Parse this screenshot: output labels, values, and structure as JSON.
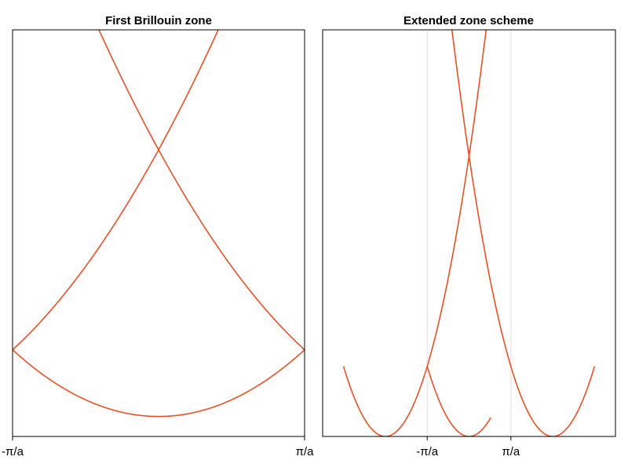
{
  "accent_color": "#e2522a",
  "chart_data": [
    {
      "type": "line",
      "title": "First Brillouin zone",
      "xlabel": "",
      "ylabel": "",
      "x_unit": "pi/a",
      "xlim": [
        -1,
        1
      ],
      "ylim": [
        -0.3,
        5.8
      ],
      "grid": false,
      "x_ticks": [
        {
          "value": -1,
          "label": "-π/a"
        },
        {
          "value": 1,
          "label": "π/a"
        }
      ],
      "series": [
        {
          "shift": 0
        },
        {
          "shift": 2
        },
        {
          "shift": -2
        }
      ],
      "curve_formula": "E = (k + shift)^2",
      "line_color": "#e2522a"
    },
    {
      "type": "line",
      "title": "Extended zone scheme",
      "xlabel": "",
      "ylabel": "",
      "x_unit": "pi/a",
      "xlim": [
        -3.5,
        3.5
      ],
      "ylim": [
        0,
        5.8
      ],
      "grid": true,
      "x_ticks": [
        {
          "value": -1,
          "label": "-π/a"
        },
        {
          "value": 1,
          "label": "π/a"
        }
      ],
      "series": [
        {
          "center": -2,
          "k_range": [
            -3,
            0.5
          ]
        },
        {
          "center": 0,
          "k_range": [
            -1,
            0.52
          ]
        },
        {
          "center": 2,
          "k_range": [
            -0.5,
            3
          ]
        }
      ],
      "curve_formula": "E = (k - center)^2",
      "line_color": "#e2522a"
    }
  ]
}
